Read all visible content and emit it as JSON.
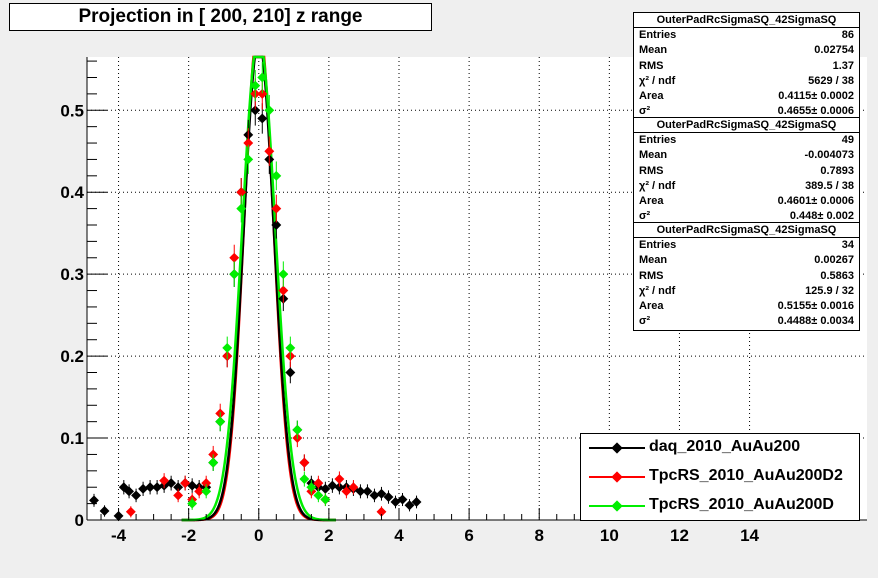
{
  "title": "Projection in [ 200, 210] z range",
  "stats": [
    {
      "name": "OuterPadRcSigmaSQ_42SigmaSQ",
      "rows": [
        {
          "label": "Entries",
          "value": "86"
        },
        {
          "label": "Mean",
          "value": "0.02754"
        },
        {
          "label": "RMS",
          "value": "1.37"
        },
        {
          "label": "χ² / ndf",
          "value": "5629 / 38"
        },
        {
          "label": "Area",
          "value": "0.4115± 0.0002"
        },
        {
          "label": "σ²",
          "value": "0.4655± 0.0006"
        }
      ]
    },
    {
      "name": "OuterPadRcSigmaSQ_42SigmaSQ",
      "rows": [
        {
          "label": "Entries",
          "value": "49"
        },
        {
          "label": "Mean",
          "value": "-0.004073"
        },
        {
          "label": "RMS",
          "value": "0.7893"
        },
        {
          "label": "χ² / ndf",
          "value": "389.5 / 38"
        },
        {
          "label": "Area",
          "value": "0.4601± 0.0006"
        },
        {
          "label": "σ²",
          "value": "0.448± 0.002"
        }
      ]
    },
    {
      "name": "OuterPadRcSigmaSQ_42SigmaSQ",
      "rows": [
        {
          "label": "Entries",
          "value": "34"
        },
        {
          "label": "Mean",
          "value": "0.00267"
        },
        {
          "label": "RMS",
          "value": "0.5863"
        },
        {
          "label": "χ² / ndf",
          "value": "125.9 / 32"
        },
        {
          "label": "Area",
          "value": "0.5155± 0.0016"
        },
        {
          "label": "σ²",
          "value": "0.4488± 0.0034"
        }
      ]
    }
  ],
  "colors": {
    "daq": "#000000",
    "tpcrs_d2": "#ff0000",
    "tpcrs_d": "#00ee00"
  },
  "chart_data": {
    "type": "scatter",
    "title": "Projection in [ 200, 210] z range",
    "xlabel": "",
    "ylabel": "",
    "xlim": [
      -4.9,
      17.35
    ],
    "ylim": [
      0,
      0.565
    ],
    "grid": true,
    "legend_position": "bottom-right",
    "x_ticks": [
      {
        "value": -4,
        "label": "-4"
      },
      {
        "value": -2,
        "label": "-2"
      },
      {
        "value": 0,
        "label": "0"
      },
      {
        "value": 2,
        "label": "2"
      },
      {
        "value": 4,
        "label": "4"
      },
      {
        "value": 6,
        "label": "6"
      },
      {
        "value": 8,
        "label": "8"
      },
      {
        "value": 10,
        "label": "10"
      },
      {
        "value": 12,
        "label": "12"
      },
      {
        "value": 14,
        "label": "14"
      }
    ],
    "y_ticks": [
      {
        "value": 0,
        "label": "0"
      },
      {
        "value": 0.1,
        "label": "0.1"
      },
      {
        "value": 0.2,
        "label": "0.2"
      },
      {
        "value": 0.3,
        "label": "0.3"
      },
      {
        "value": 0.4,
        "label": "0.4"
      },
      {
        "value": 0.5,
        "label": "0.5"
      }
    ],
    "series": [
      {
        "name": "daq_2010_AuAu200",
        "color": "#000000",
        "x": [
          -4.7,
          -4.4,
          -4.0,
          -3.85,
          -3.7,
          -3.5,
          -3.3,
          -3.1,
          -2.9,
          -2.7,
          -2.5,
          -2.3,
          -2.1,
          -1.9,
          -1.7,
          -1.5,
          -1.3,
          -1.1,
          -0.9,
          -0.7,
          -0.5,
          -0.3,
          -0.1,
          0.1,
          0.3,
          0.5,
          0.7,
          0.9,
          1.1,
          1.3,
          1.5,
          1.7,
          1.9,
          2.1,
          2.3,
          2.5,
          2.7,
          2.9,
          3.1,
          3.3,
          3.5,
          3.7,
          3.9,
          4.1,
          4.3,
          4.5
        ],
        "y": [
          0.024,
          0.011,
          0.005,
          0.04,
          0.035,
          0.03,
          0.038,
          0.04,
          0.04,
          0.042,
          0.045,
          0.04,
          0.045,
          0.042,
          0.04,
          0.04,
          0.07,
          0.12,
          0.2,
          0.3,
          0.4,
          0.47,
          0.5,
          0.49,
          0.44,
          0.36,
          0.27,
          0.18,
          0.11,
          0.07,
          0.045,
          0.04,
          0.038,
          0.042,
          0.04,
          0.04,
          0.038,
          0.035,
          0.035,
          0.03,
          0.032,
          0.028,
          0.022,
          0.025,
          0.018,
          0.022
        ]
      },
      {
        "name": "TpcRS_2010_AuAu200D2",
        "color": "#ff0000",
        "x": [
          -3.65,
          -2.7,
          -2.3,
          -2.1,
          -1.9,
          -1.7,
          -1.5,
          -1.3,
          -1.1,
          -0.9,
          -0.7,
          -0.5,
          -0.3,
          -0.1,
          0.1,
          0.3,
          0.5,
          0.7,
          0.9,
          1.1,
          1.3,
          1.5,
          1.7,
          1.9,
          2.3,
          2.5,
          2.7,
          3.5
        ],
        "y": [
          0.01,
          0.048,
          0.03,
          0.045,
          0.025,
          0.035,
          0.045,
          0.08,
          0.13,
          0.2,
          0.32,
          0.4,
          0.46,
          0.52,
          0.52,
          0.45,
          0.38,
          0.28,
          0.2,
          0.1,
          0.07,
          0.035,
          0.045,
          0.025,
          0.05,
          0.035,
          0.04,
          0.01
        ]
      },
      {
        "name": "TpcRS_2010_AuAu200D",
        "color": "#00ee00",
        "x": [
          -1.9,
          -1.5,
          -1.3,
          -1.1,
          -0.9,
          -0.7,
          -0.5,
          -0.3,
          -0.1,
          0.1,
          0.3,
          0.5,
          0.7,
          0.9,
          1.1,
          1.3,
          1.5,
          1.7,
          1.9
        ],
        "y": [
          0.02,
          0.035,
          0.07,
          0.12,
          0.21,
          0.3,
          0.38,
          0.44,
          0.53,
          0.54,
          0.5,
          0.42,
          0.3,
          0.21,
          0.11,
          0.05,
          0.04,
          0.03,
          0.025
        ]
      }
    ],
    "fits": [
      {
        "name": "TpcRS_2010_AuAu200D2",
        "color": "#ff0000",
        "amplitude": 0.605,
        "sigma": 0.415
      },
      {
        "name": "daq_2010_AuAu200",
        "color": "#000000",
        "amplitude": 0.585,
        "sigma": 0.43
      },
      {
        "name": "TpcRS_2010_AuAu200D",
        "color": "#00ee00",
        "amplitude": 0.59,
        "sigma": 0.47
      }
    ]
  },
  "legend": [
    {
      "label": "daq_2010_AuAu200",
      "color": "#000000"
    },
    {
      "label": "TpcRS_2010_AuAu200D2",
      "color": "#ff0000"
    },
    {
      "label": "TpcRS_2010_AuAu200D",
      "color": "#00ee00"
    }
  ]
}
